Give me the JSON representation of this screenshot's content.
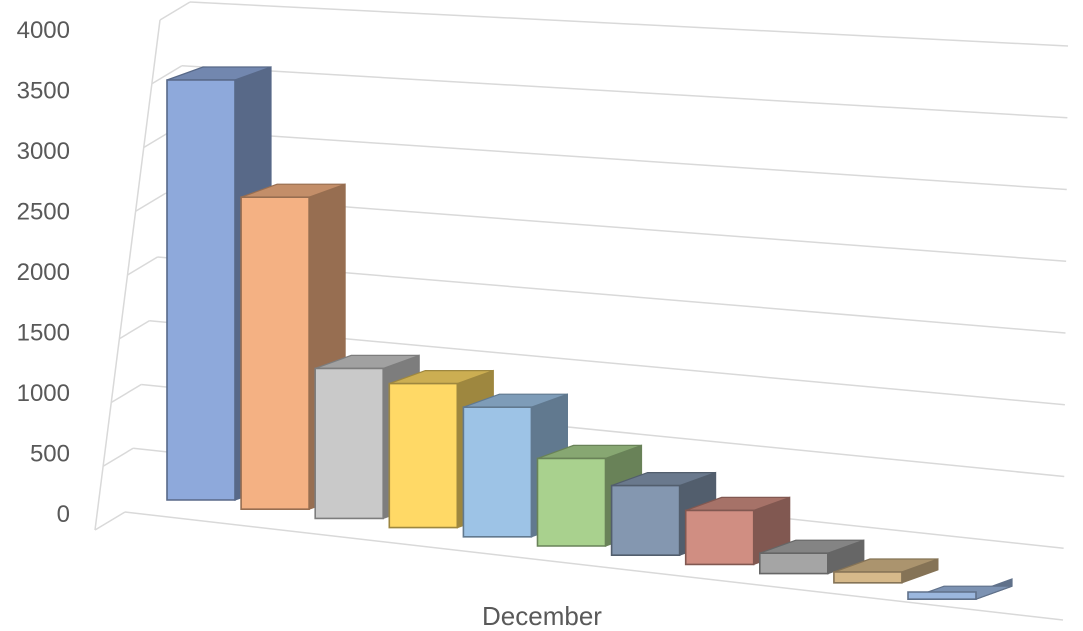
{
  "chart_data": {
    "type": "bar",
    "style": "3d-column",
    "categories": [
      "December"
    ],
    "series": [
      {
        "values": [
          3500
        ],
        "color": "#8EA9DB"
      },
      {
        "values": [
          2600
        ],
        "color": "#F4B183"
      },
      {
        "values": [
          1250
        ],
        "color": "#C9C9C9"
      },
      {
        "values": [
          1200
        ],
        "color": "#FFD966"
      },
      {
        "values": [
          1080
        ],
        "color": "#9DC3E6"
      },
      {
        "values": [
          730
        ],
        "color": "#A9D18E"
      },
      {
        "values": [
          580
        ],
        "color": "#8497B0"
      },
      {
        "values": [
          450
        ],
        "color": "#D08E82"
      },
      {
        "values": [
          170
        ],
        "color": "#A5A5A5"
      },
      {
        "values": [
          90
        ],
        "color": "#D6B98A"
      },
      {
        "values": [
          -60
        ],
        "color": "#9BB7DE"
      }
    ],
    "yticks": [
      "0",
      "500",
      "1000",
      "1500",
      "2000",
      "2500",
      "3000",
      "3500",
      "4000"
    ],
    "ylim": [
      0,
      4000
    ],
    "xlabel": "December",
    "grid": true,
    "legend": "none"
  }
}
